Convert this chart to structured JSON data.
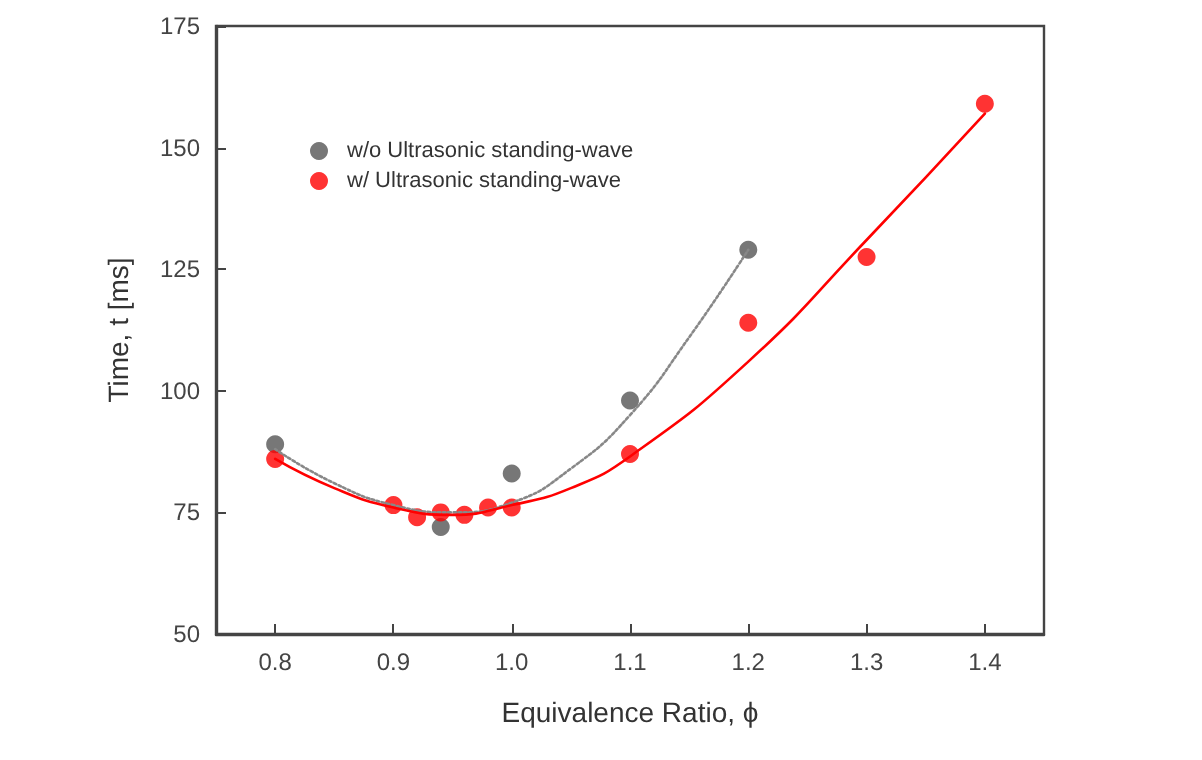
{
  "chart_data": {
    "type": "scatter",
    "xlabel": "Equivalence Ratio, ϕ",
    "ylabel": "Time, t [ms]",
    "xlim": [
      0.75,
      1.45
    ],
    "xticks": [
      0.8,
      0.9,
      {
        "value": 1,
        "label": "1.0"
      },
      1.1,
      1.2,
      1.3,
      1.4
    ],
    "ylim": [
      50,
      175
    ],
    "yticks": [
      50,
      75,
      100,
      125,
      150,
      175
    ],
    "grid": false,
    "legend": "top left",
    "marker": "circle",
    "series": [
      {
        "name": "w/o Ultrasonic standing-wave",
        "color": "#555555",
        "x": [
          0.8,
          0.94,
          1.0,
          1.1,
          1.2
        ],
        "values": [
          89,
          72,
          83,
          98,
          129
        ]
      },
      {
        "name": "w/ Ultrasonic standing-wave",
        "color": "#ff0000",
        "x": [
          0.8,
          0.9,
          0.92,
          0.94,
          0.96,
          0.98,
          1.0,
          1.1,
          1.2,
          1.3,
          1.4
        ],
        "values": [
          86,
          76.5,
          74,
          75,
          74.5,
          76,
          76,
          87,
          114,
          127.5,
          159
        ]
      },
      {
        "type": "line",
        "color": "#888888",
        "line_style": "dotted",
        "marker": "none",
        "x": [
          0.8,
          0.85,
          0.9,
          0.95,
          1.0,
          1.05,
          1.1,
          1.15,
          1.2
        ],
        "values": [
          88,
          81,
          76.5,
          75,
          77,
          84,
          95,
          111,
          129
        ]
      },
      {
        "type": "line",
        "color": "#ff0000",
        "line_style": "solid",
        "marker": "none",
        "x": [
          0.8,
          0.85,
          0.9,
          0.95,
          1.0,
          1.05,
          1.1,
          1.2,
          1.3,
          1.4
        ],
        "values": [
          86,
          80,
          76,
          74.5,
          76.5,
          80,
          86.5,
          106,
          131,
          157
        ]
      }
    ]
  }
}
